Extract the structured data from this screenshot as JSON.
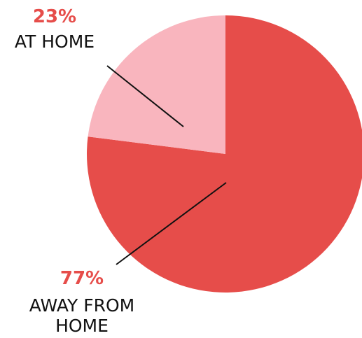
{
  "chart_data": {
    "type": "pie",
    "slices": [
      {
        "label": "AT HOME",
        "value": 23,
        "percent_text": "23%",
        "color": "#F9B5BE"
      },
      {
        "label": "AWAY FROM HOME",
        "value": 77,
        "percent_text": "77%",
        "color": "#E64D4A"
      }
    ],
    "label_color": "#E64D4A",
    "start_angle": "12 o'clock, counter-clockwise for AT HOME",
    "title": ""
  }
}
